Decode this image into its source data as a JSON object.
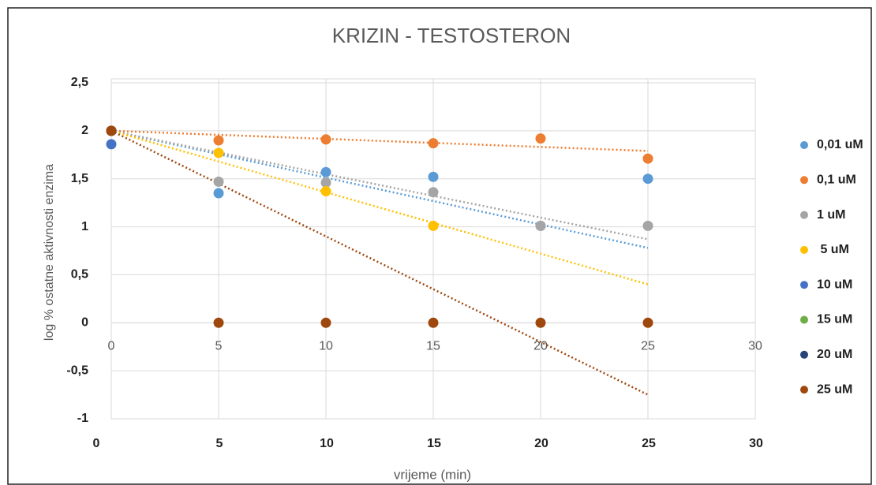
{
  "chart_data": {
    "type": "scatter",
    "title": "KRIZIN - TESTOSTERON",
    "xlabel": "vrijeme (min)",
    "ylabel": "log % ostatne aktivnosti enzima",
    "x": [
      0,
      5,
      10,
      15,
      20,
      25
    ],
    "xlim": [
      0,
      30
    ],
    "xticks": [
      0,
      5,
      10,
      15,
      20,
      25,
      30
    ],
    "ylim": [
      -1,
      2.5
    ],
    "yticks": [
      {
        "value": -1,
        "label": "-1"
      },
      {
        "value": -0.5,
        "label": "-0,5"
      },
      0,
      {
        "value": 0.5,
        "label": "0,5"
      },
      1,
      {
        "value": 1.5,
        "label": "1,5"
      },
      2,
      {
        "value": 2.5,
        "label": "2,5"
      }
    ],
    "grid": true,
    "legend": "right",
    "series": [
      {
        "name": "0,01 uM",
        "color": "#5b9bd5",
        "values": [
          2,
          1.35,
          1.57,
          1.52,
          1.01,
          1.5
        ],
        "trendline": {
          "x": [
            0,
            25
          ],
          "values": [
            2,
            0.78
          ]
        }
      },
      {
        "name": "0,1 uM",
        "color": "#ed7d31",
        "values": [
          2,
          1.9,
          1.91,
          1.87,
          1.92,
          1.71
        ],
        "trendline": {
          "x": [
            0,
            25
          ],
          "values": [
            2,
            1.79
          ]
        }
      },
      {
        "name": "1 uM",
        "color": "#a5a5a5",
        "values": [
          2,
          1.47,
          1.46,
          1.36,
          1.01,
          1.01
        ],
        "trendline": {
          "x": [
            0,
            25
          ],
          "values": [
            2,
            0.87
          ]
        }
      },
      {
        "name": " 5 uM",
        "color": "#ffc000",
        "values": [
          2,
          1.77,
          1.37,
          1.01,
          null,
          null
        ],
        "trendline": {
          "x": [
            0,
            25
          ],
          "values": [
            2,
            0.4
          ]
        }
      },
      {
        "name": "10 uM",
        "color": "#4472c4",
        "values": [
          1.86,
          null,
          null,
          null,
          null,
          null
        ]
      },
      {
        "name": "15 uM",
        "color": "#70ad47",
        "values": [
          2,
          null,
          null,
          null,
          null,
          null
        ]
      },
      {
        "name": "20 uM",
        "color": "#264478",
        "values": [
          2,
          null,
          null,
          null,
          null,
          null
        ]
      },
      {
        "name": "25 uM",
        "color": "#9e480e",
        "values": [
          2,
          0,
          0,
          0,
          0,
          0
        ],
        "trendline": {
          "x": [
            0,
            25
          ],
          "values": [
            2,
            -0.75
          ]
        }
      }
    ]
  }
}
